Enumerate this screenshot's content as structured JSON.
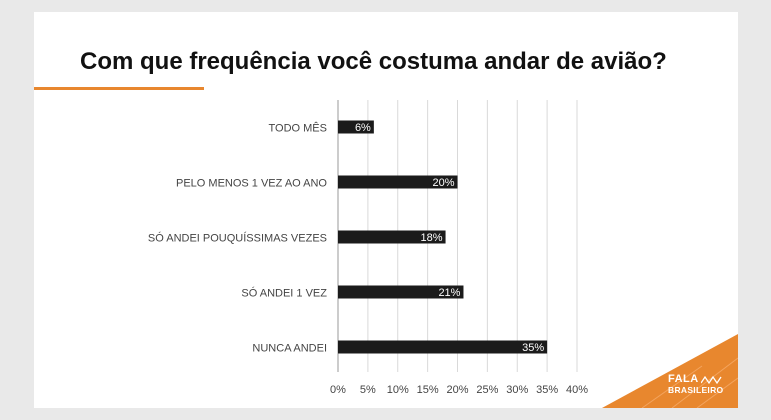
{
  "title": "Com que frequência você costuma andar de avião?",
  "colors": {
    "accent": "#e8872e",
    "bar": "#1b1b1b",
    "grid": "#d9d9d9",
    "label": "#444444",
    "corner": "#e8872e"
  },
  "chart_data": {
    "type": "bar",
    "orientation": "horizontal",
    "title": "Com que frequência você costuma andar de avião?",
    "xlabel": "",
    "ylabel": "",
    "xlim": [
      0,
      40
    ],
    "grid": true,
    "categories": [
      "TODO MÊS",
      "PELO MENOS 1 VEZ AO ANO",
      "SÓ ANDEI POUQUÍSSIMAS VEZES",
      "SÓ ANDEI 1 VEZ",
      "NUNCA ANDEI"
    ],
    "values": [
      6,
      20,
      18,
      21,
      35
    ],
    "data_labels": [
      "6%",
      "20%",
      "18%",
      "21%",
      "35%"
    ],
    "ticks": [
      0,
      5,
      10,
      15,
      20,
      25,
      30,
      35,
      40
    ],
    "tick_labels": [
      "0%",
      "5%",
      "10%",
      "15%",
      "20%",
      "25%",
      "30%",
      "35%",
      "40%"
    ]
  },
  "logo": {
    "line1": "FALA",
    "line2": "BRASILEIRO",
    "icon": "wave-icon"
  }
}
